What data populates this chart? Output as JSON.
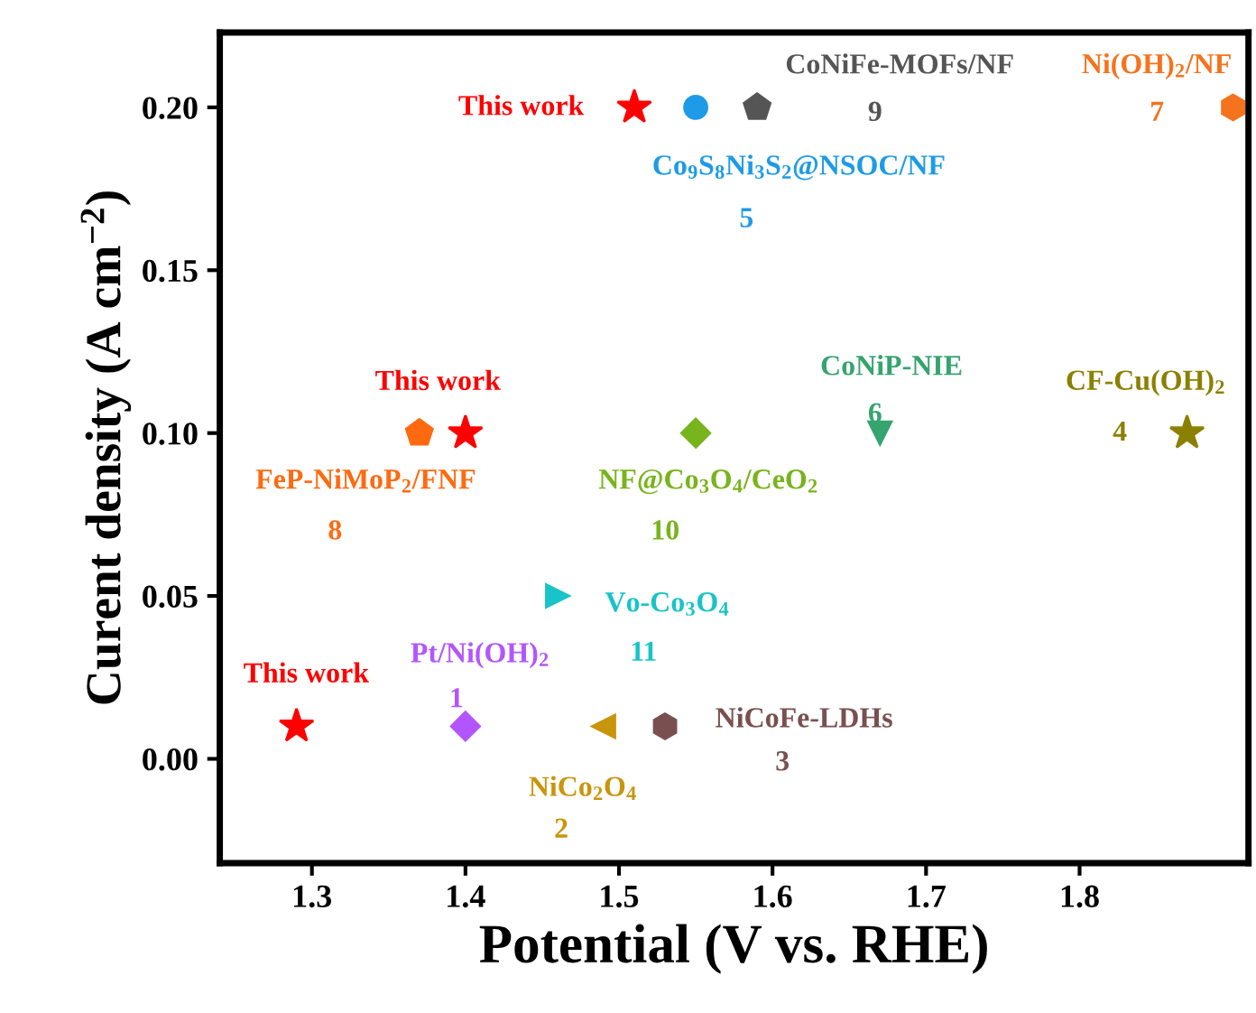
{
  "chart_data": {
    "type": "scatter",
    "xlabel": "Potential (V vs. RHE)",
    "ylabel": "Curent density (A cm$^{−2}$)",
    "xlim": [
      1.24,
      1.91
    ],
    "ylim": [
      -0.032,
      0.223
    ],
    "xticks": [
      1.3,
      1.4,
      1.5,
      1.6,
      1.7,
      1.8
    ],
    "yticks": [
      {
        "value": 0,
        "label": "0.00"
      },
      {
        "value": 0.05,
        "label": "0.05"
      },
      {
        "value": 0.1,
        "label": "0.10"
      },
      {
        "value": 0.15,
        "label": "0.15"
      },
      {
        "value": 0.2,
        "label": "0.20"
      }
    ],
    "grid": false,
    "legend": false,
    "series": [
      {
        "name": "This work",
        "color": "#ff0000",
        "marker": "star",
        "x": [
          1.29,
          1.4,
          1.51
        ],
        "values": [
          0.01,
          0.1,
          0.2
        ]
      },
      {
        "name": "Pt/Ni(OH)$_{2}$",
        "color": "#b355ff",
        "marker": "diamond",
        "x": [
          1.4
        ],
        "values": [
          0.01
        ]
      },
      {
        "name": "NiCo$_{2}$O$_{4}$",
        "color": "#c9950c",
        "x": [
          1.49
        ],
        "values": [
          0.01
        ]
      },
      {
        "name": "NiCoFe-LDHs",
        "color": "#7a4f4f",
        "x": [
          1.53
        ],
        "values": [
          0.01
        ]
      },
      {
        "name": "CF-Cu(OH)$_{2}$",
        "color": "#8b8000",
        "marker": "star",
        "x": [
          1.87
        ],
        "values": [
          0.1
        ]
      },
      {
        "name": "Co$_{9}$S$_{8}$Ni$_{3}$S$_{2}$@NSOC/NF",
        "color": "#1e9be6",
        "marker": "circle",
        "x": [
          1.55
        ],
        "values": [
          0.2
        ]
      },
      {
        "name": "CoNiP-NIE",
        "color": "#35a46e",
        "x": [
          1.67
        ],
        "values": [
          0.1
        ]
      },
      {
        "name": "Ni(OH)$_{2}$/NF",
        "color": "#f5731c",
        "x": [
          1.9
        ],
        "values": [
          0.2
        ]
      },
      {
        "name": "FeP-NiMoP$_{2}$/FNF",
        "color": "#ff6a10",
        "x": [
          1.37
        ],
        "values": [
          0.1
        ]
      },
      {
        "name": "CoNiFe-MOFs/NF",
        "color": "#555555",
        "x": [
          1.59
        ],
        "values": [
          0.2
        ]
      },
      {
        "name": "NF@Co$_{3}$O$_{4}$/CeO$_{2}$",
        "color": "#78b41c",
        "marker": "diamond",
        "x": [
          1.55
        ],
        "values": [
          0.1
        ]
      },
      {
        "name": "Vo-Co$_{3}$O$_{4}$",
        "color": "#18c4c8",
        "x": [
          1.46
        ],
        "values": [
          0.05
        ]
      }
    ],
    "annotations": [
      "1",
      "2",
      "3",
      "4",
      "5",
      "6",
      "7",
      "8",
      "9",
      "10",
      "11"
    ]
  }
}
